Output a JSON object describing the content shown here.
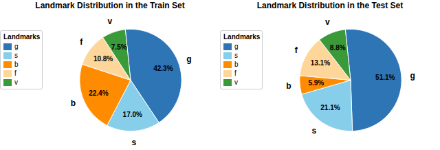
{
  "chart_data": [
    {
      "type": "pie",
      "title": "Landmark Distribution in the Train Set",
      "categories": [
        "g",
        "s",
        "b",
        "f",
        "v"
      ],
      "values": [
        42.3,
        17.0,
        22.4,
        10.8,
        7.5
      ],
      "value_labels": [
        "42.3%",
        "17.0%",
        "22.4%",
        "10.8%",
        "7.5%"
      ],
      "colors": [
        "#2E75B6",
        "#87CEEB",
        "#FF8C00",
        "#FFD699",
        "#3A9A3A"
      ],
      "data_labels": true,
      "legend": "upper left",
      "legend_title": "Landmarks"
    },
    {
      "type": "pie",
      "title": "Landmark Distribution in the Test Set",
      "categories": [
        "g",
        "s",
        "b",
        "f",
        "v"
      ],
      "values": [
        51.1,
        21.1,
        5.9,
        13.1,
        8.8
      ],
      "value_labels": [
        "51.1%",
        "21.1%",
        "5.9%",
        "13.1%",
        "8.8%"
      ],
      "colors": [
        "#2E75B6",
        "#87CEEB",
        "#FF8C00",
        "#FFD699",
        "#3A9A3A"
      ],
      "data_labels": true,
      "legend": "upper left",
      "legend_title": "Landmarks"
    }
  ]
}
